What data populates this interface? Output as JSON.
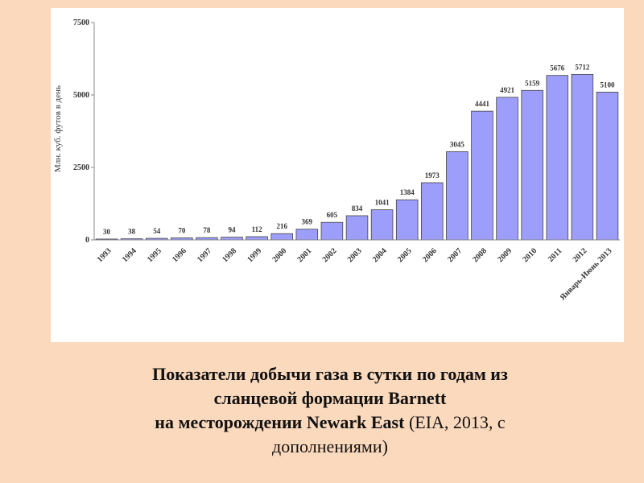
{
  "chart_data": {
    "type": "bar",
    "y_label": "Млн. куб. футов в день",
    "categories": [
      "1993",
      "1994",
      "1995",
      "1996",
      "1997",
      "1998",
      "1999",
      "2000",
      "2001",
      "2002",
      "2003",
      "2004",
      "2005",
      "2006",
      "2007",
      "2008",
      "2009",
      "2010",
      "2011",
      "2012",
      "Январь-Июнь 2013"
    ],
    "values": [
      30,
      38,
      54,
      70,
      78,
      94,
      112,
      216,
      369,
      605,
      834,
      1041,
      1384,
      1973,
      3045,
      4441,
      4921,
      5159,
      5676,
      5712,
      5100
    ],
    "color": "#9d9dfb",
    "ylim": [
      0,
      7500
    ],
    "yticks": [
      0,
      2500,
      5000,
      7500
    ]
  },
  "caption": {
    "bold_lines": [
      "Показатели добычи газа в сутки по годам из",
      "сланцевой формации Barnett",
      "на месторождении Newark East"
    ],
    "normal": "(EIA, 2013, с дополнениями)"
  }
}
